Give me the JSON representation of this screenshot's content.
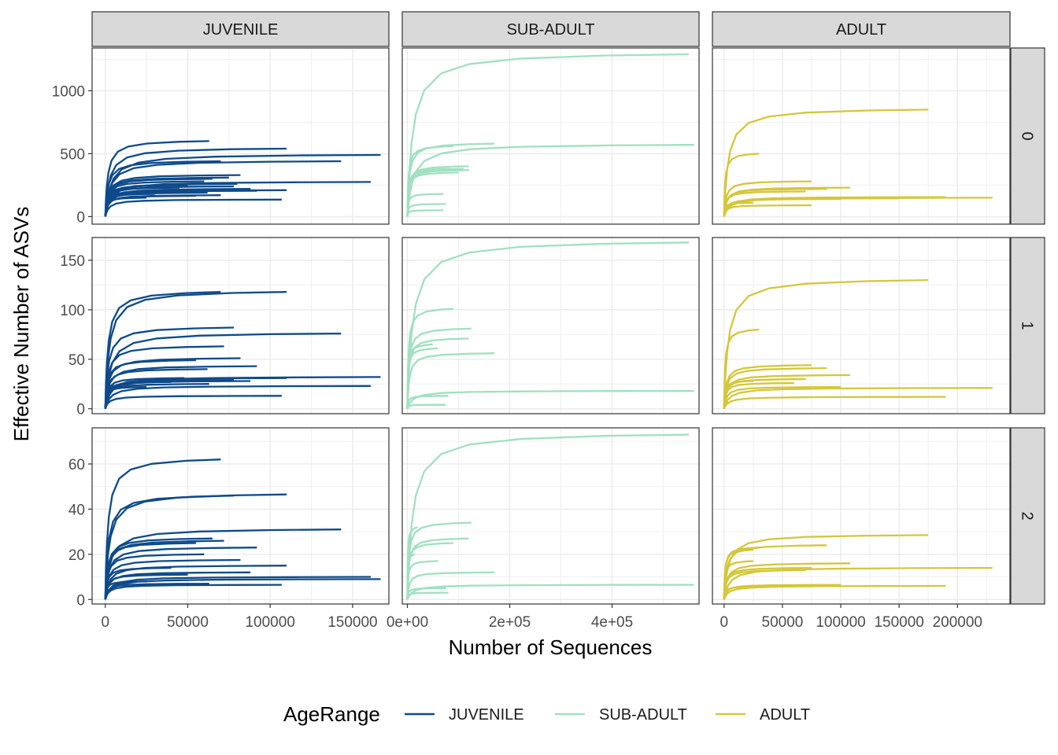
{
  "chart_data": {
    "type": "line",
    "title": "",
    "xlabel": "Number of Sequences",
    "ylabel": "Effective Number of ASVs",
    "grid": true,
    "legend": {
      "title": "AgeRange",
      "placement": "bottom",
      "entries": [
        {
          "name": "JUVENILE",
          "color": "#0e4a8a"
        },
        {
          "name": "SUB-ADULT",
          "color": "#a1e0c0"
        },
        {
          "name": "ADULT",
          "color": "#d4c73a"
        }
      ]
    },
    "column_facets": [
      {
        "label": "JUVENILE",
        "xlim": [
          -8000,
          172000
        ],
        "xticks": [
          0,
          50000,
          100000,
          150000
        ],
        "xtick_labels": [
          "0",
          "50000",
          "100000",
          "150000"
        ]
      },
      {
        "label": "SUB-ADULT",
        "xlim": [
          -10000,
          570000
        ],
        "xticks": [
          0,
          200000,
          400000
        ],
        "xtick_labels": [
          "0e+00",
          "2e+05",
          "4e+05"
        ]
      },
      {
        "label": "ADULT",
        "xlim": [
          -10000,
          245000
        ],
        "xticks": [
          0,
          50000,
          100000,
          150000,
          200000
        ],
        "xtick_labels": [
          "0",
          "50000",
          "100000",
          "150000",
          "200000"
        ]
      }
    ],
    "row_facets": [
      {
        "label": "0",
        "ylim": [
          -60,
          1340
        ],
        "yticks": [
          0,
          500,
          1000
        ],
        "ytick_labels": [
          "0",
          "500",
          "1000"
        ]
      },
      {
        "label": "1",
        "ylim": [
          -5,
          173
        ],
        "yticks": [
          0,
          50,
          100,
          150
        ],
        "ytick_labels": [
          "0",
          "50",
          "100",
          "150"
        ]
      },
      {
        "label": "2",
        "ylim": [
          -2,
          76
        ],
        "yticks": [
          0,
          20,
          40,
          60
        ],
        "ytick_labels": [
          "0",
          "20",
          "40",
          "60"
        ]
      }
    ],
    "series": [
      {
        "name": "JUVENILE",
        "row": 0,
        "col": 0,
        "curves": [
          [
            63000,
            600
          ],
          [
            110000,
            540
          ],
          [
            167000,
            490
          ],
          [
            143000,
            440
          ],
          [
            70000,
            440
          ],
          [
            161000,
            275
          ],
          [
            82000,
            330
          ],
          [
            75000,
            310
          ],
          [
            65000,
            300
          ],
          [
            60000,
            280
          ],
          [
            110000,
            210
          ],
          [
            92000,
            205
          ],
          [
            78000,
            240
          ],
          [
            88000,
            220
          ],
          [
            50000,
            250
          ],
          [
            62000,
            190
          ],
          [
            107000,
            135
          ],
          [
            55000,
            165
          ],
          [
            40000,
            200
          ],
          [
            70000,
            170
          ],
          [
            25000,
            150
          ],
          [
            45000,
            230
          ],
          [
            80000,
            260
          ],
          [
            30000,
            180
          ],
          [
            58000,
            210
          ]
        ]
      },
      {
        "name": "SUB-ADULT",
        "row": 0,
        "col": 1,
        "curves": [
          [
            550000,
            1290
          ],
          [
            560000,
            570
          ],
          [
            170000,
            580
          ],
          [
            90000,
            560
          ],
          [
            120000,
            400
          ],
          [
            110000,
            380
          ],
          [
            120000,
            370
          ],
          [
            85000,
            380
          ],
          [
            100000,
            350
          ],
          [
            70000,
            180
          ],
          [
            75000,
            100
          ],
          [
            70000,
            50
          ]
        ]
      },
      {
        "name": "ADULT",
        "row": 0,
        "col": 2,
        "curves": [
          [
            175000,
            850
          ],
          [
            30000,
            500
          ],
          [
            75000,
            280
          ],
          [
            108000,
            230
          ],
          [
            88000,
            220
          ],
          [
            70000,
            200
          ],
          [
            230000,
            150
          ],
          [
            190000,
            155
          ],
          [
            150000,
            145
          ],
          [
            100000,
            140
          ],
          [
            75000,
            90
          ],
          [
            25000,
            110
          ],
          [
            10000,
            100
          ]
        ]
      },
      {
        "name": "JUVENILE",
        "row": 1,
        "col": 0,
        "curves": [
          [
            70000,
            118
          ],
          [
            110000,
            118
          ],
          [
            78000,
            82
          ],
          [
            143000,
            76
          ],
          [
            72000,
            63
          ],
          [
            82000,
            51
          ],
          [
            55000,
            49
          ],
          [
            92000,
            43
          ],
          [
            62000,
            40
          ],
          [
            167000,
            32
          ],
          [
            110000,
            31
          ],
          [
            78000,
            29
          ],
          [
            161000,
            23
          ],
          [
            63000,
            25
          ],
          [
            88000,
            28
          ],
          [
            107000,
            13
          ],
          [
            25000,
            22
          ],
          [
            48000,
            31
          ],
          [
            40000,
            27
          ]
        ]
      },
      {
        "name": "SUB-ADULT",
        "row": 1,
        "col": 1,
        "curves": [
          [
            550000,
            168
          ],
          [
            90000,
            101
          ],
          [
            125000,
            81
          ],
          [
            120000,
            71
          ],
          [
            170000,
            56
          ],
          [
            60000,
            61
          ],
          [
            50000,
            65
          ],
          [
            560000,
            18
          ],
          [
            80000,
            13
          ],
          [
            75000,
            4
          ]
        ]
      },
      {
        "name": "ADULT",
        "row": 1,
        "col": 2,
        "curves": [
          [
            175000,
            130
          ],
          [
            30000,
            80
          ],
          [
            75000,
            44
          ],
          [
            88000,
            41
          ],
          [
            108000,
            34
          ],
          [
            230000,
            21
          ],
          [
            100000,
            22
          ],
          [
            190000,
            12
          ],
          [
            70000,
            30
          ],
          [
            25000,
            28
          ],
          [
            60000,
            26
          ]
        ]
      },
      {
        "name": "JUVENILE",
        "row": 2,
        "col": 0,
        "curves": [
          [
            70000,
            62
          ],
          [
            110000,
            46.5
          ],
          [
            78000,
            46
          ],
          [
            143000,
            31
          ],
          [
            72000,
            26
          ],
          [
            55000,
            25
          ],
          [
            65000,
            27
          ],
          [
            92000,
            23
          ],
          [
            60000,
            20
          ],
          [
            82000,
            17.5
          ],
          [
            110000,
            15
          ],
          [
            40000,
            14
          ],
          [
            88000,
            12
          ],
          [
            167000,
            9
          ],
          [
            161000,
            10
          ],
          [
            63000,
            7
          ],
          [
            107000,
            6.5
          ],
          [
            25000,
            8
          ],
          [
            50000,
            11
          ]
        ]
      },
      {
        "name": "SUB-ADULT",
        "row": 2,
        "col": 1,
        "curves": [
          [
            550000,
            73
          ],
          [
            125000,
            34
          ],
          [
            120000,
            27
          ],
          [
            90000,
            25
          ],
          [
            20000,
            32
          ],
          [
            170000,
            12
          ],
          [
            60000,
            17
          ],
          [
            15000,
            20
          ],
          [
            560000,
            6.5
          ],
          [
            75000,
            5
          ],
          [
            80000,
            3
          ]
        ]
      },
      {
        "name": "ADULT",
        "row": 2,
        "col": 2,
        "curves": [
          [
            175000,
            28.5
          ],
          [
            88000,
            24
          ],
          [
            30000,
            23
          ],
          [
            25000,
            22
          ],
          [
            108000,
            16
          ],
          [
            230000,
            14
          ],
          [
            75000,
            14
          ],
          [
            70000,
            13
          ],
          [
            25000,
            17
          ],
          [
            100000,
            6.5
          ],
          [
            190000,
            6
          ],
          [
            60000,
            6
          ]
        ]
      }
    ]
  }
}
